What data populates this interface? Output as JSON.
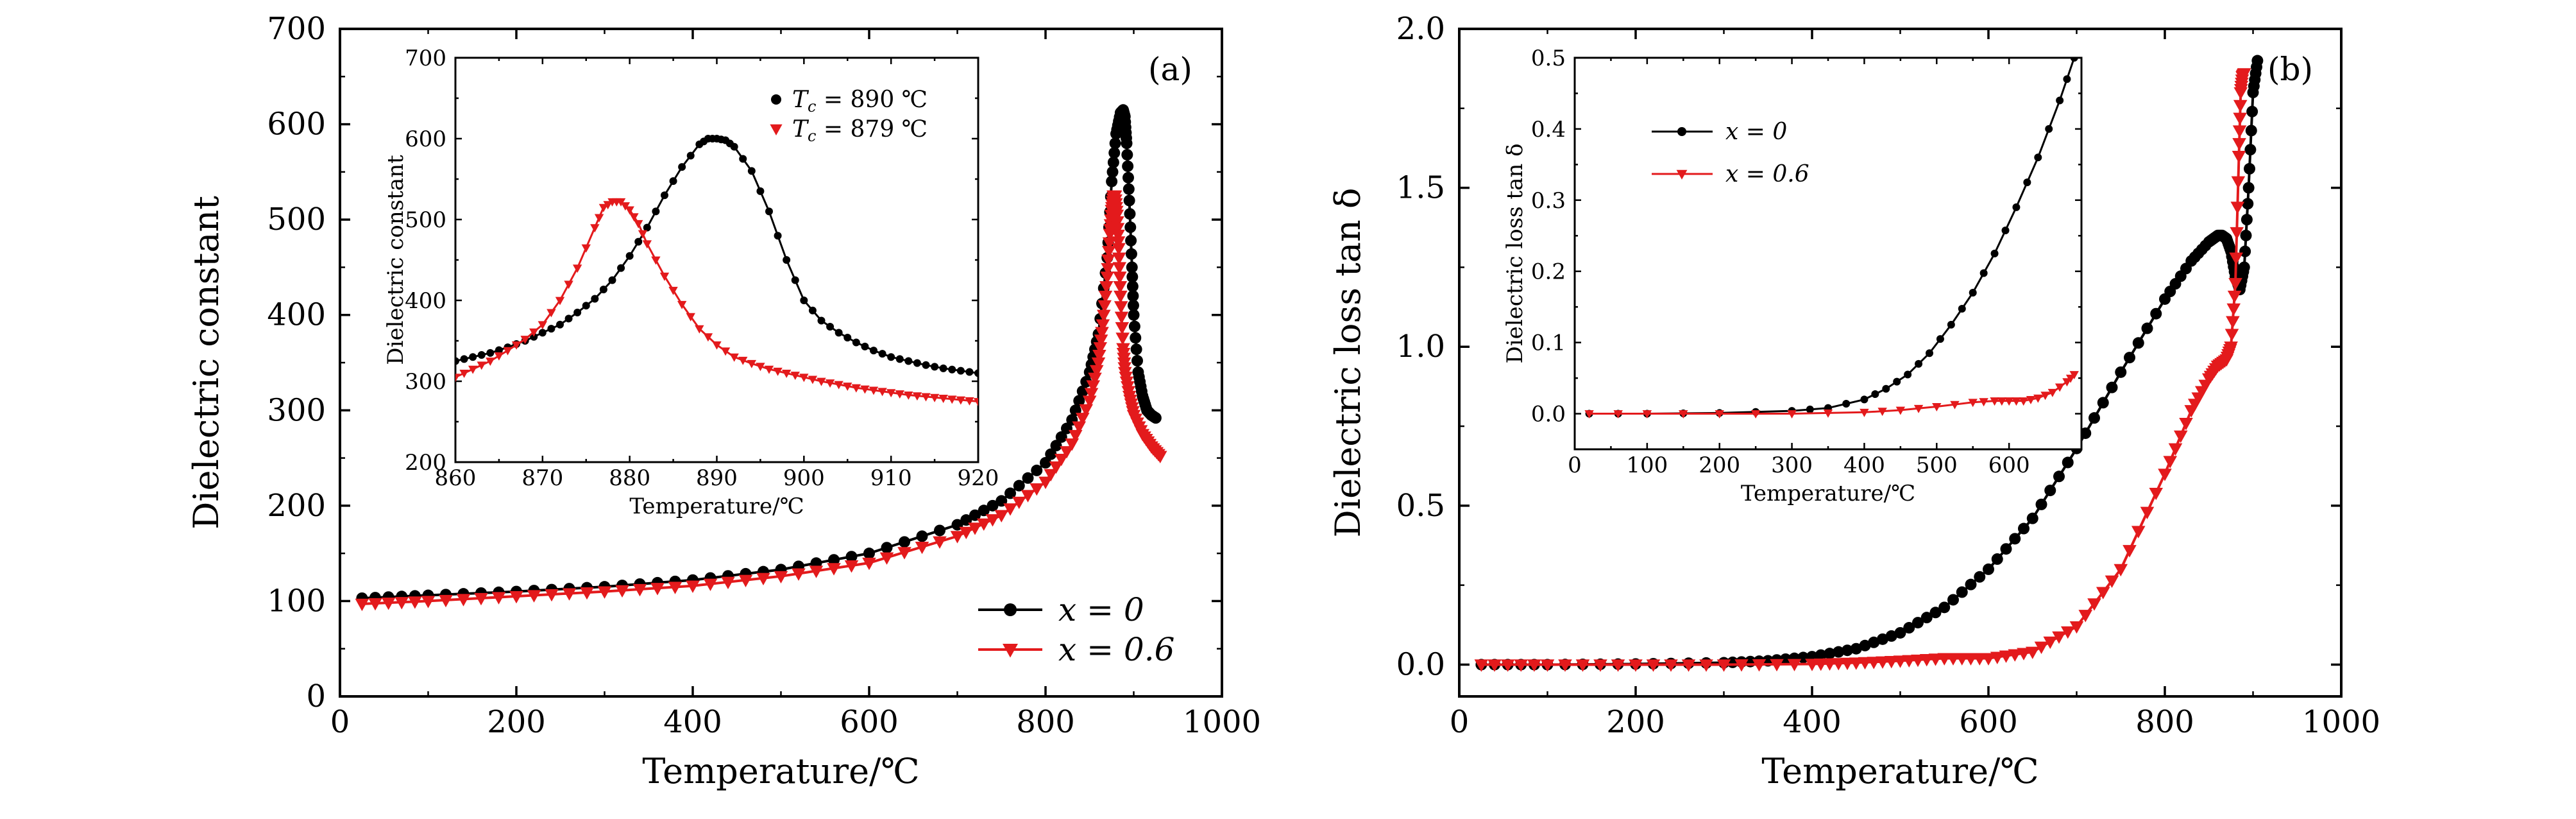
{
  "colors": {
    "x0": "#000000",
    "x06": "#e31a1c",
    "axis": "#000000"
  },
  "chart_data": [
    {
      "id": "a-main",
      "type": "line",
      "panel_label": "(a)",
      "xlabel": "Temperature/℃",
      "ylabel": "Dielectric constant",
      "xlim": [
        0,
        1000
      ],
      "ylim": [
        0,
        700
      ],
      "xticks": [
        0,
        200,
        400,
        600,
        800,
        1000
      ],
      "yticks": [
        0,
        100,
        200,
        300,
        400,
        500,
        600,
        700
      ],
      "legend": {
        "position": "bottom-right"
      },
      "series": [
        {
          "name": "x = 0",
          "key": "x0",
          "marker": "circle",
          "x": [
            25,
            100,
            200,
            300,
            400,
            500,
            600,
            700,
            750,
            800,
            830,
            850,
            860,
            870,
            875,
            880,
            885,
            888,
            890,
            892,
            895,
            898,
            900,
            905,
            910,
            915,
            920,
            925
          ],
          "y": [
            103,
            106,
            110,
            115,
            122,
            133,
            150,
            180,
            205,
            245,
            290,
            340,
            380,
            460,
            540,
            590,
            612,
            615,
            608,
            580,
            520,
            450,
            400,
            340,
            315,
            300,
            295,
            292
          ]
        },
        {
          "name": "x = 0.6",
          "key": "x06",
          "marker": "triangle-down",
          "x": [
            25,
            100,
            200,
            300,
            400,
            500,
            600,
            700,
            750,
            800,
            830,
            850,
            860,
            865,
            870,
            873,
            875,
            877,
            879,
            881,
            883,
            885,
            888,
            890,
            895,
            900,
            910,
            920,
            930
          ],
          "y": [
            97,
            100,
            105,
            110,
            116,
            126,
            140,
            168,
            190,
            225,
            265,
            310,
            350,
            390,
            440,
            485,
            510,
            525,
            525,
            505,
            470,
            420,
            365,
            340,
            315,
            295,
            275,
            262,
            252
          ]
        }
      ]
    },
    {
      "id": "a-inset",
      "type": "line",
      "xlabel": "Temperature/℃",
      "ylabel": "Dielectric constant",
      "xlim": [
        860,
        920
      ],
      "ylim": [
        200,
        700
      ],
      "xticks": [
        860,
        870,
        880,
        890,
        900,
        910,
        920
      ],
      "yticks": [
        200,
        300,
        400,
        500,
        600,
        700
      ],
      "legend": {
        "position": "top-right"
      },
      "series": [
        {
          "name": "T",
          "sub": "c",
          "suffix": " = 890 ℃",
          "key": "x0",
          "marker": "circle",
          "x": [
            860,
            862,
            864,
            866,
            868,
            870,
            872,
            874,
            876,
            878,
            880,
            882,
            884,
            886,
            888,
            889,
            890,
            891,
            892,
            894,
            896,
            898,
            900,
            902,
            904,
            906,
            908,
            910,
            912,
            914,
            916,
            918,
            920
          ],
          "y": [
            325,
            330,
            335,
            342,
            350,
            360,
            370,
            385,
            402,
            425,
            455,
            490,
            530,
            565,
            593,
            600,
            600,
            598,
            590,
            560,
            510,
            450,
            400,
            375,
            360,
            348,
            338,
            330,
            325,
            320,
            316,
            313,
            310
          ]
        },
        {
          "name": "T",
          "sub": "c",
          "suffix": " = 879 ℃",
          "key": "x06",
          "marker": "triangle-down",
          "x": [
            860,
            862,
            864,
            866,
            868,
            870,
            872,
            874,
            876,
            877,
            878,
            879,
            880,
            881,
            882,
            884,
            886,
            888,
            890,
            892,
            894,
            896,
            898,
            900,
            902,
            904,
            906,
            908,
            910,
            912,
            914,
            916,
            918,
            920
          ],
          "y": [
            305,
            315,
            325,
            338,
            352,
            370,
            400,
            440,
            490,
            515,
            522,
            522,
            512,
            495,
            470,
            430,
            395,
            365,
            345,
            330,
            322,
            315,
            310,
            305,
            300,
            296,
            292,
            289,
            286,
            283,
            281,
            279,
            277,
            275
          ]
        }
      ]
    },
    {
      "id": "b-main",
      "type": "line",
      "panel_label": "(b)",
      "xlabel": "Temperature/℃",
      "ylabel": "Dielectric loss tan δ",
      "xlim": [
        0,
        1000
      ],
      "ylim": [
        -0.1,
        2.0
      ],
      "xticks": [
        0,
        200,
        400,
        600,
        800,
        1000
      ],
      "yticks": [
        0.0,
        0.5,
        1.0,
        1.5,
        2.0
      ],
      "series": [
        {
          "name": "x = 0",
          "key": "x0",
          "marker": "circle",
          "x": [
            25,
            100,
            200,
            300,
            350,
            400,
            450,
            500,
            550,
            600,
            650,
            700,
            750,
            800,
            830,
            850,
            860,
            865,
            870,
            875,
            880,
            885,
            890,
            895,
            900,
            905
          ],
          "y": [
            0,
            0,
            0.002,
            0.006,
            0.012,
            0.025,
            0.05,
            0.1,
            0.18,
            0.3,
            0.46,
            0.68,
            0.92,
            1.15,
            1.27,
            1.33,
            1.35,
            1.35,
            1.34,
            1.3,
            1.22,
            1.18,
            1.25,
            1.5,
            1.8,
            1.9
          ]
        },
        {
          "name": "x = 0.6",
          "key": "x06",
          "marker": "triangle-down",
          "x": [
            25,
            100,
            200,
            300,
            400,
            450,
            500,
            550,
            600,
            650,
            700,
            750,
            800,
            830,
            850,
            860,
            870,
            875,
            880,
            884,
            886,
            888,
            890
          ],
          "y": [
            0,
            0,
            0,
            0,
            0.002,
            0.006,
            0.012,
            0.02,
            0.02,
            0.04,
            0.12,
            0.3,
            0.6,
            0.8,
            0.9,
            0.94,
            0.96,
            1.0,
            1.2,
            1.6,
            1.8,
            1.85,
            1.86
          ]
        }
      ]
    },
    {
      "id": "b-inset",
      "type": "line",
      "xlabel": "Temperature/℃",
      "ylabel": "Dielectric loss tan δ",
      "xlim": [
        0,
        700
      ],
      "ylim": [
        -0.05,
        0.5
      ],
      "xticks": [
        0,
        100,
        200,
        300,
        400,
        500,
        600
      ],
      "yticks": [
        0.0,
        0.1,
        0.2,
        0.3,
        0.4,
        0.5
      ],
      "legend": {
        "position": "top-left"
      },
      "series": [
        {
          "name": "x = 0",
          "key": "x0",
          "marker": "circle",
          "x": [
            20,
            100,
            200,
            300,
            350,
            400,
            430,
            460,
            490,
            520,
            550,
            580,
            610,
            640,
            670,
            690
          ],
          "y": [
            0,
            0,
            0.001,
            0.004,
            0.008,
            0.02,
            0.035,
            0.055,
            0.085,
            0.125,
            0.17,
            0.225,
            0.29,
            0.36,
            0.44,
            0.5
          ]
        },
        {
          "name": "x = 0.6",
          "key": "x06",
          "marker": "triangle-down",
          "x": [
            20,
            100,
            200,
            300,
            400,
            450,
            500,
            550,
            580,
            600,
            620,
            640,
            660,
            680,
            690
          ],
          "y": [
            0,
            0,
            0,
            0,
            0.002,
            0.005,
            0.01,
            0.016,
            0.018,
            0.018,
            0.018,
            0.022,
            0.03,
            0.045,
            0.055
          ]
        }
      ]
    }
  ]
}
